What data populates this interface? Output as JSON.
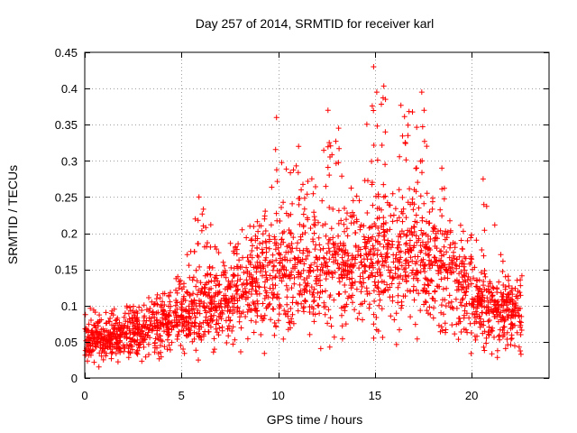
{
  "chart_data": {
    "type": "scatter",
    "title": "Day 257 of 2014, SRMTID for receiver karl",
    "xlabel": "GPS time / hours",
    "ylabel": "SRMTID / TECUs",
    "xlim": [
      0,
      24
    ],
    "ylim": [
      0,
      0.45
    ],
    "xticks": [
      0,
      5,
      10,
      15,
      20
    ],
    "xtick_labels": [
      "0",
      "5",
      "10",
      "15",
      "20"
    ],
    "yticks": [
      0,
      0.05,
      0.1,
      0.15,
      0.2,
      0.25,
      0.3,
      0.35,
      0.4,
      0.45
    ],
    "ytick_labels": [
      "0",
      "0.05",
      "0.1",
      "0.15",
      "0.2",
      "0.25",
      "0.3",
      "0.35",
      "0.4",
      "0.45"
    ],
    "grid": true,
    "marker": "plus",
    "color": "#ff0000",
    "series": [
      {
        "name": "SRMTID",
        "x_range": [
          0.0,
          22.6
        ],
        "profile": {
          "hours": [
            0,
            1,
            2,
            3,
            4,
            5,
            6,
            7,
            8,
            9,
            10,
            11,
            12,
            13,
            14,
            15,
            16,
            17,
            18,
            19,
            20,
            21,
            22,
            22.6
          ],
          "typical": [
            0.05,
            0.05,
            0.06,
            0.06,
            0.07,
            0.08,
            0.09,
            0.1,
            0.11,
            0.13,
            0.14,
            0.14,
            0.14,
            0.15,
            0.15,
            0.16,
            0.16,
            0.16,
            0.15,
            0.14,
            0.11,
            0.09,
            0.09,
            0.08
          ],
          "upper_envelope": [
            0.1,
            0.09,
            0.1,
            0.1,
            0.12,
            0.15,
            0.25,
            0.18,
            0.2,
            0.26,
            0.36,
            0.32,
            0.29,
            0.37,
            0.25,
            0.43,
            0.38,
            0.39,
            0.29,
            0.26,
            0.2,
            0.27,
            0.13,
            0.15
          ]
        },
        "peaks": [
          {
            "x": 5.9,
            "y": 0.25
          },
          {
            "x": 9.9,
            "y": 0.36
          },
          {
            "x": 11.1,
            "y": 0.32
          },
          {
            "x": 12.6,
            "y": 0.37
          },
          {
            "x": 14.9,
            "y": 0.43
          },
          {
            "x": 15.1,
            "y": 0.395
          },
          {
            "x": 15.5,
            "y": 0.385
          },
          {
            "x": 17.4,
            "y": 0.395
          },
          {
            "x": 17.5,
            "y": 0.37
          },
          {
            "x": 18.4,
            "y": 0.29
          },
          {
            "x": 20.6,
            "y": 0.275
          }
        ]
      }
    ]
  }
}
